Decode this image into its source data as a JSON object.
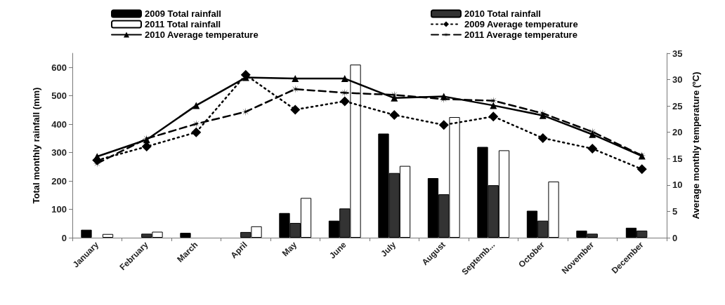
{
  "chart_data": {
    "type": "bar",
    "categories": [
      "January",
      "February",
      "March",
      "April",
      "May",
      "June",
      "July",
      "August",
      "Septemb...",
      "October",
      "November",
      "December"
    ],
    "ylabel": "Total monthly rainfall (mm)",
    "y2label": "Average monthly temperature (ºC)",
    "ylim": [
      0,
      650
    ],
    "yticks": [
      0,
      100,
      200,
      300,
      400,
      500,
      600
    ],
    "y2lim": [
      0,
      35
    ],
    "y2ticks": [
      0,
      5,
      10,
      15,
      20,
      25,
      30,
      35
    ],
    "legend": "top",
    "grid": false,
    "series": [
      {
        "name": "2009 Total rainfall",
        "color": "#000000",
        "values": [
          28,
          0,
          17,
          0,
          87,
          60,
          367,
          210,
          320,
          95,
          25,
          35
        ]
      },
      {
        "name": "2010 Total rainfall",
        "color": "#333333",
        "values": [
          0,
          14,
          0,
          20,
          52,
          103,
          228,
          153,
          185,
          60,
          14,
          25
        ]
      },
      {
        "name": "2011 Total rainfall",
        "color": "#ffffff",
        "values": [
          13,
          21,
          0,
          40,
          140,
          610,
          253,
          425,
          308,
          198,
          0,
          0
        ]
      },
      {
        "name": "2009 Average temperature",
        "type": "line",
        "axis": "y2",
        "color": "#000000",
        "marker": "diamond",
        "line_style": "dotted",
        "values": [
          14.7,
          17.3,
          20,
          30.9,
          24.3,
          25.9,
          23.3,
          21.4,
          23,
          18.9,
          16.9,
          13
        ]
      },
      {
        "name": "2010 Average temperature",
        "type": "line",
        "axis": "y2",
        "color": "#000000",
        "marker": "triangle",
        "line_style": "solid",
        "values": [
          15.4,
          18.6,
          25.1,
          30.4,
          30.2,
          30.2,
          26.5,
          26.8,
          25.1,
          23.2,
          19.6,
          15.5
        ]
      },
      {
        "name": "2011 Average temperature",
        "type": "line",
        "axis": "y2",
        "color": "#000000",
        "marker": "cross",
        "line_style": "dashed",
        "values": [
          14.1,
          18.8,
          21.6,
          23.9,
          28.2,
          27.5,
          27.1,
          26.3,
          26,
          23.6,
          20.1,
          15.6
        ]
      }
    ]
  }
}
